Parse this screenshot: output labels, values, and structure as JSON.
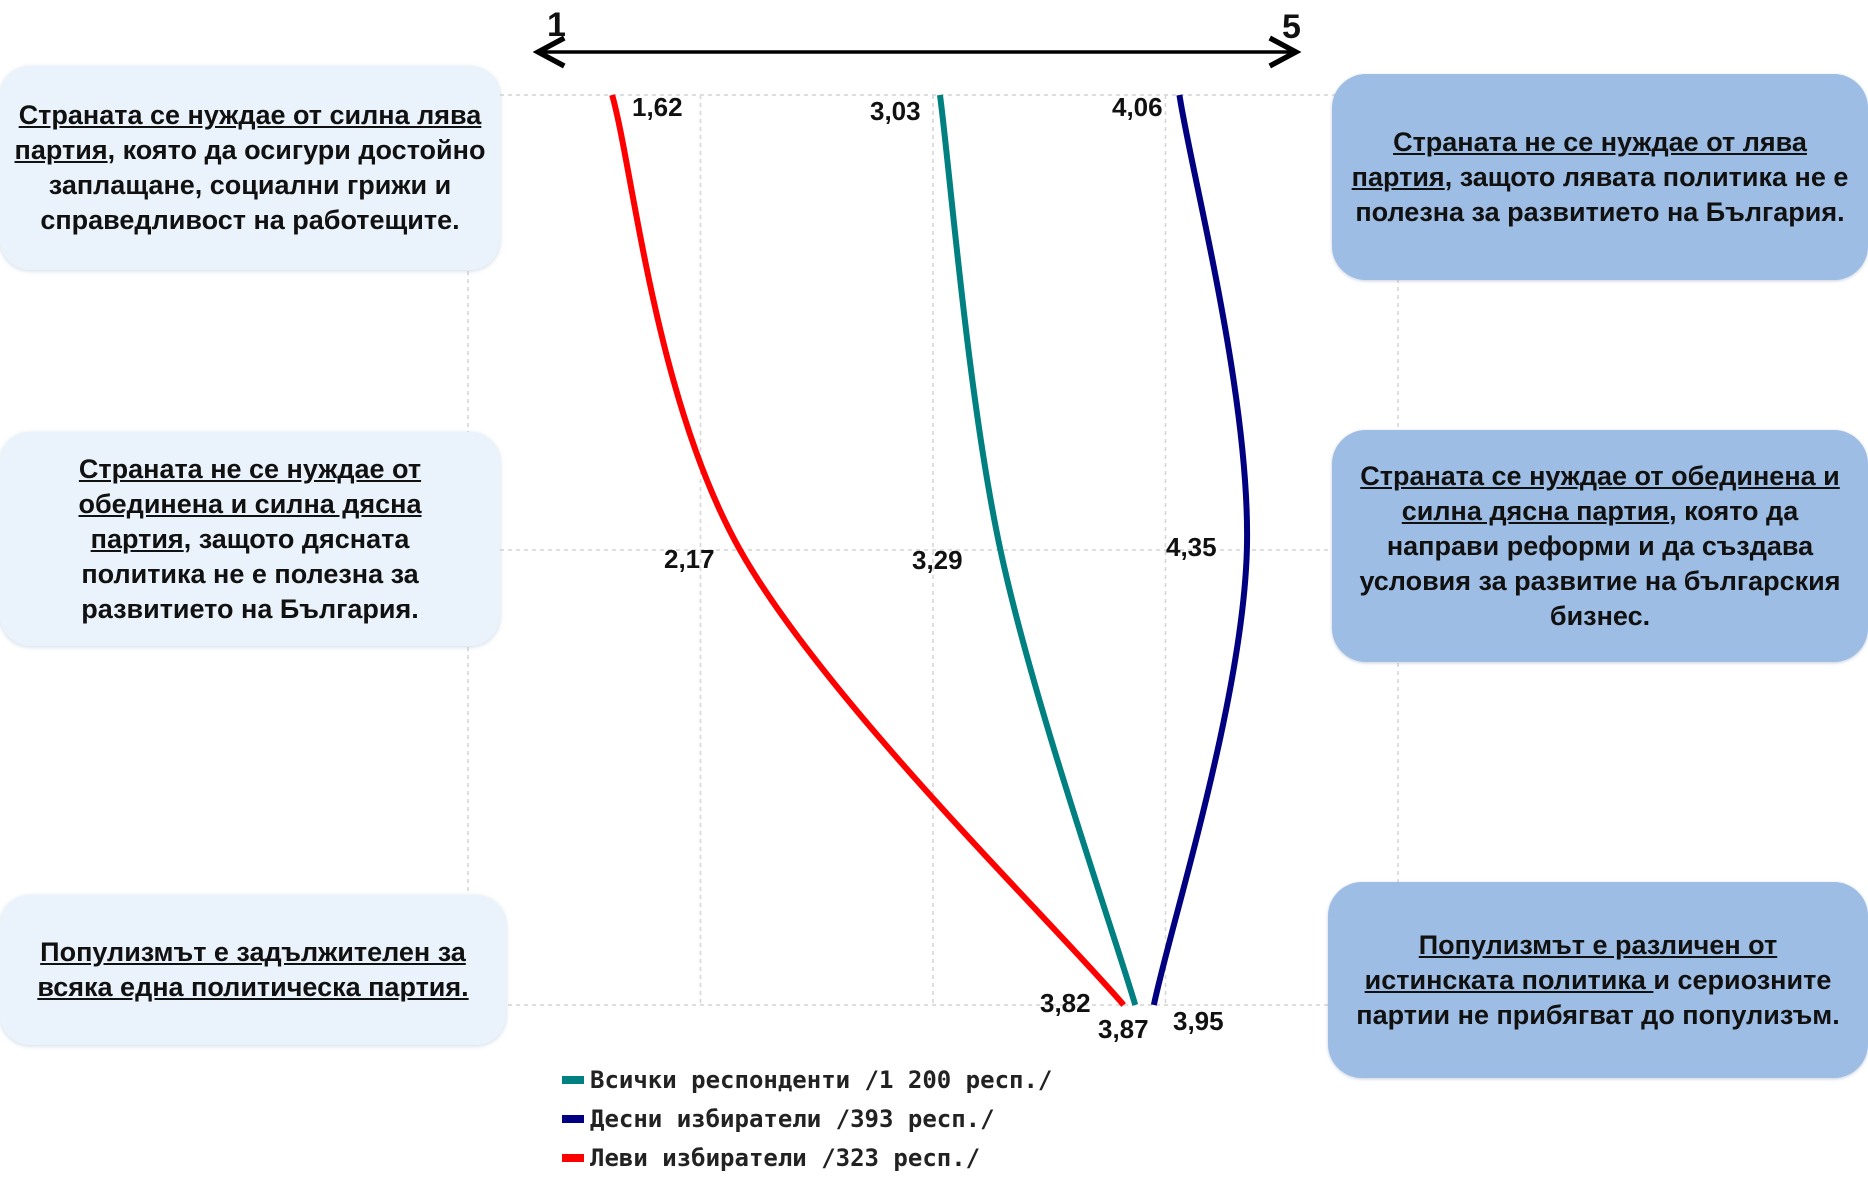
{
  "chart_data": {
    "type": "line",
    "scale": {
      "min_label": "1",
      "max_label": "5",
      "min": 1,
      "max": 5
    },
    "statements": [
      {
        "left": {
          "underlined": "Страната се нуждае от силна лява партия",
          "rest": ", която да осигури достойно заплащане, социални грижи и справедливост на работещите."
        },
        "right": {
          "underlined": "Страната не се нуждае от лява партия",
          "rest": ", защото лявата политика не е полезна за развитието на България."
        }
      },
      {
        "left": {
          "underlined": "Страната не се нуждае от обединена и силна дясна партия",
          "rest": ", защото дясната политика не е полезна за развитието на България."
        },
        "right": {
          "underlined": "Страната се нуждае от обединена и силна дясна партия",
          "rest": ", която да направи реформи и да създава условия за развитие на българския бизнес."
        }
      },
      {
        "left": {
          "underlined": "Популизмът е задължителен за всяка една политическа партия.",
          "rest": ""
        },
        "right": {
          "underlined": "Популизмът е различен от истинската политика ",
          "rest": "и сериозните партии не прибягват до популизъм."
        }
      }
    ],
    "series": [
      {
        "name": "Всички респонденти /1 200 респ./",
        "color": "#008080",
        "values": [
          3.03,
          3.29,
          3.87
        ],
        "labels": [
          "3,03",
          "3,29",
          "3,87"
        ]
      },
      {
        "name": "Десни избиратели /393 респ./",
        "color": "#000080",
        "values": [
          4.06,
          4.35,
          3.95
        ],
        "labels": [
          "4,06",
          "4,35",
          "3,95"
        ]
      },
      {
        "name": "Леви избиратели /323 респ./",
        "color": "#ff0000",
        "values": [
          1.62,
          2.17,
          3.82
        ],
        "labels": [
          "1,62",
          "2,17",
          "3,82"
        ]
      }
    ],
    "grid": true,
    "legend_position": "bottom"
  }
}
